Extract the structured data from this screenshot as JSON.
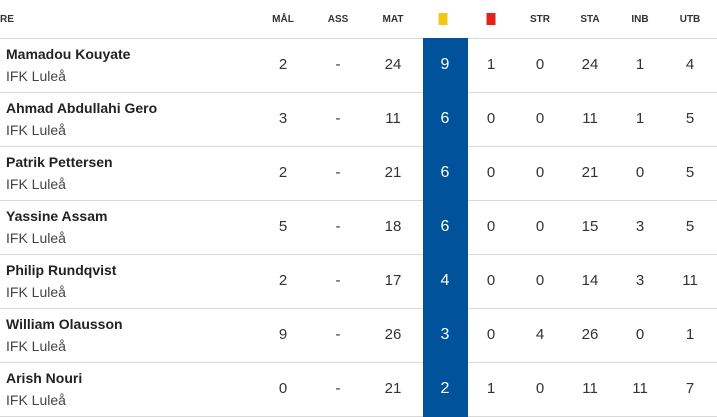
{
  "colors": {
    "highlight": "#00539b",
    "yellow_card": "#f5c518",
    "red_card": "#e2231a"
  },
  "header": {
    "name": "RE",
    "goals": "MÅL",
    "assists": "ASS",
    "matches": "MAT",
    "yellow_icon": "yellow-card-icon",
    "red_icon": "red-card-icon",
    "starts": "STR",
    "started": "STA",
    "subs_in": "INB",
    "subs_out": "UTB"
  },
  "rows": [
    {
      "name": "Mamadou Kouyate",
      "club": "IFK Luleå",
      "goals": "2",
      "assists": "-",
      "matches": "24",
      "yellow": "9",
      "red": "1",
      "starts": "0",
      "started": "24",
      "subs_in": "1",
      "subs_out": "4"
    },
    {
      "name": "Ahmad Abdullahi Gero",
      "club": "IFK Luleå",
      "goals": "3",
      "assists": "-",
      "matches": "11",
      "yellow": "6",
      "red": "0",
      "starts": "0",
      "started": "11",
      "subs_in": "1",
      "subs_out": "5"
    },
    {
      "name": "Patrik Pettersen",
      "club": "IFK Luleå",
      "goals": "2",
      "assists": "-",
      "matches": "21",
      "yellow": "6",
      "red": "0",
      "starts": "0",
      "started": "21",
      "subs_in": "0",
      "subs_out": "5"
    },
    {
      "name": "Yassine Assam",
      "club": "IFK Luleå",
      "goals": "5",
      "assists": "-",
      "matches": "18",
      "yellow": "6",
      "red": "0",
      "starts": "0",
      "started": "15",
      "subs_in": "3",
      "subs_out": "5"
    },
    {
      "name": "Philip Rundqvist",
      "club": "IFK Luleå",
      "goals": "2",
      "assists": "-",
      "matches": "17",
      "yellow": "4",
      "red": "0",
      "starts": "0",
      "started": "14",
      "subs_in": "3",
      "subs_out": "11"
    },
    {
      "name": "William Olausson",
      "club": "IFK Luleå",
      "goals": "9",
      "assists": "-",
      "matches": "26",
      "yellow": "3",
      "red": "0",
      "starts": "4",
      "started": "26",
      "subs_in": "0",
      "subs_out": "1"
    },
    {
      "name": "Arish Nouri",
      "club": "IFK Luleå",
      "goals": "0",
      "assists": "-",
      "matches": "21",
      "yellow": "2",
      "red": "1",
      "starts": "0",
      "started": "11",
      "subs_in": "11",
      "subs_out": "7"
    }
  ]
}
